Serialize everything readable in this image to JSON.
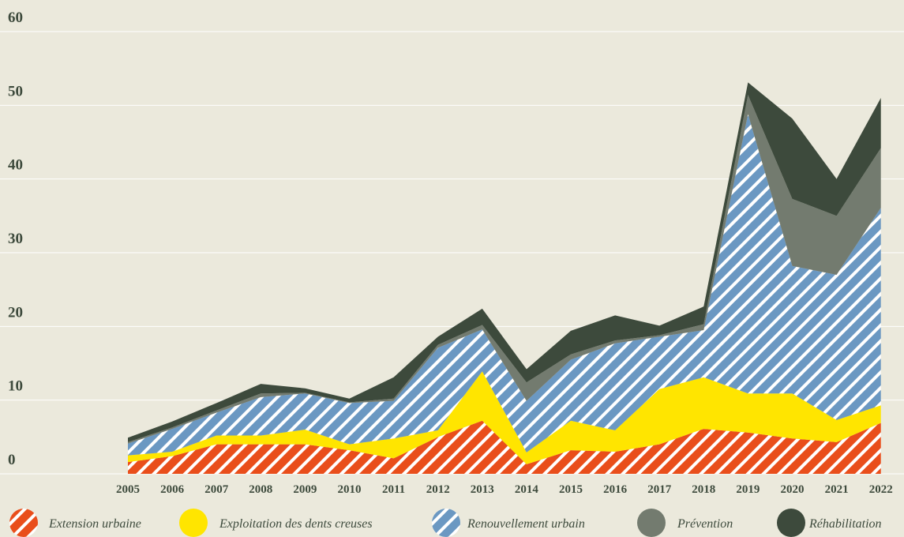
{
  "chart_data": {
    "type": "stacked_area",
    "categories": [
      "2005",
      "2006",
      "2007",
      "2008",
      "2009",
      "2010",
      "2011",
      "2012",
      "2013",
      "2014",
      "2015",
      "2016",
      "2017",
      "2018",
      "2019",
      "2020",
      "2021",
      "2022"
    ],
    "series": [
      {
        "name": "Extension urbaine",
        "color": "#e94e1b",
        "hatched": true,
        "values": [
          1.6,
          2.4,
          4,
          4,
          4,
          3.2,
          2.1,
          5,
          7.2,
          1.3,
          3.2,
          3,
          4,
          6.1,
          5.6,
          4.8,
          4.3,
          6.9
        ]
      },
      {
        "name": "Exploitation des dents creuses",
        "color": "#ffe500",
        "hatched": false,
        "values": [
          0.9,
          0.6,
          1.2,
          1.2,
          2.0,
          0.8,
          2.7,
          0.9,
          6.7,
          1.6,
          4.0,
          2.9,
          7.5,
          7.0,
          5.3,
          6.1,
          3.0,
          2.4
        ]
      },
      {
        "name": "Renouvellement urbain",
        "color": "#6b98c2",
        "hatched": true,
        "values": [
          1.6,
          3.1,
          3.1,
          5.2,
          4.9,
          5.6,
          5.1,
          11.2,
          5.7,
          7.0,
          8.3,
          11.8,
          7.1,
          6.4,
          37.9,
          17.3,
          19.7,
          26.8
        ]
      },
      {
        "name": "Prévention",
        "color": "#737b6f",
        "hatched": false,
        "values": [
          0.2,
          0.2,
          0.3,
          0.5,
          0.1,
          0.1,
          0.3,
          0.4,
          0.6,
          2.5,
          0.7,
          0.4,
          0.2,
          0.8,
          2.6,
          9.1,
          8.0,
          8.1
        ]
      },
      {
        "name": "Réhabilitation",
        "color": "#3d4a3c",
        "hatched": false,
        "values": [
          0.6,
          0.8,
          1.0,
          1.3,
          0.6,
          0.5,
          2.9,
          1.1,
          2.2,
          1.8,
          3.2,
          3.4,
          1.3,
          2.4,
          1.7,
          10.9,
          5.0,
          6.8
        ]
      }
    ],
    "ylim": [
      0,
      60
    ],
    "yticks": [
      0,
      10,
      20,
      30,
      40,
      50,
      60
    ],
    "grid": true
  }
}
